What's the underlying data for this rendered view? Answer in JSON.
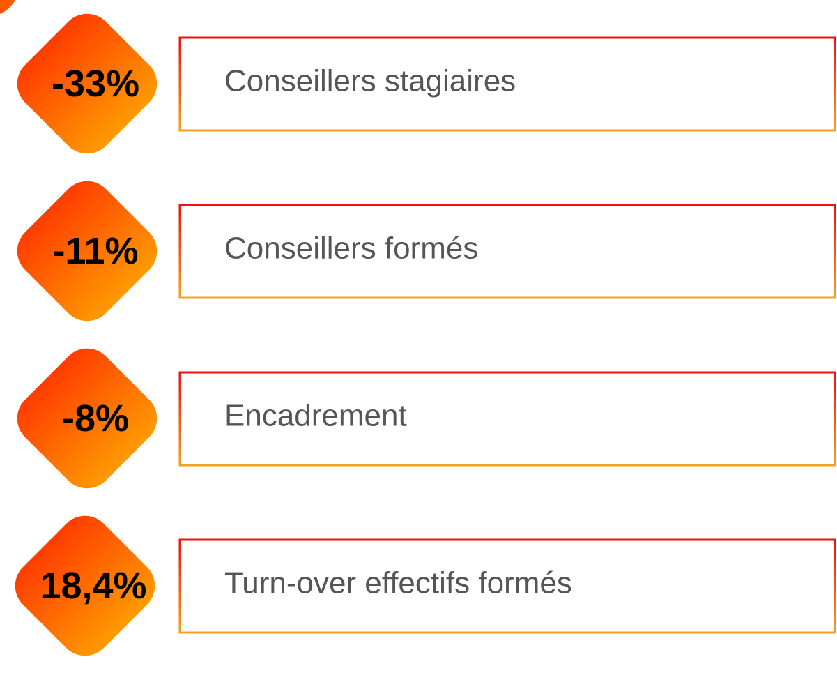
{
  "items": [
    {
      "value": "-33%",
      "label": "Conseillers stagiaires"
    },
    {
      "value": "-11%",
      "label": "Conseillers formés"
    },
    {
      "value": "-8%",
      "label": "Encadrement"
    },
    {
      "value": "18,4%",
      "label": "Turn-over effectifs formés"
    }
  ]
}
